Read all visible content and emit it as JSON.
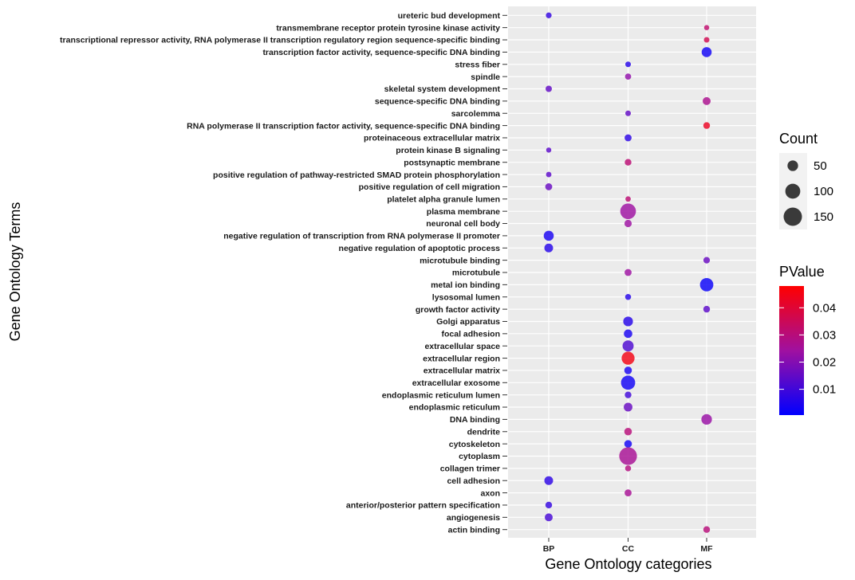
{
  "chart_data": {
    "type": "scatter",
    "xlabel": "Gene Ontology categories",
    "ylabel": "Gene Ontology Terms",
    "categories": [
      "BP",
      "CC",
      "MF"
    ],
    "terms": [
      "ureteric bud development",
      "transmembrane receptor protein tyrosine kinase activity",
      "transcriptional repressor activity, RNA polymerase II transcription regulatory region sequence-specific binding",
      "transcription factor activity, sequence-specific DNA binding",
      "stress fiber",
      "spindle",
      "skeletal system development",
      "sequence-specific DNA binding",
      "sarcolemma",
      "RNA polymerase II transcription factor activity, sequence-specific DNA binding",
      "proteinaceous extracellular matrix",
      "protein kinase B signaling",
      "postsynaptic membrane",
      "positive regulation of pathway-restricted SMAD protein phosphorylation",
      "positive regulation of cell migration",
      "platelet alpha granule lumen",
      "plasma membrane",
      "neuronal cell body",
      "negative regulation of transcription from RNA polymerase II promoter",
      "negative regulation of apoptotic process",
      "microtubule binding",
      "microtubule",
      "metal ion binding",
      "lysosomal lumen",
      "growth factor activity",
      "Golgi apparatus",
      "focal adhesion",
      "extracellular space",
      "extracellular region",
      "extracellular matrix",
      "extracellular exosome",
      "endoplasmic reticulum lumen",
      "endoplasmic reticulum",
      "DNA binding",
      "dendrite",
      "cytoskeleton",
      "cytoplasm",
      "collagen trimer",
      "cell adhesion",
      "axon",
      "anterior/posterior pattern specification",
      "angiogenesis",
      "actin binding"
    ],
    "points": [
      {
        "term": "ureteric bud development",
        "category": "BP",
        "count": 15,
        "pvalue": 0.008
      },
      {
        "term": "transmembrane receptor protein tyrosine kinase activity",
        "category": "MF",
        "count": 12,
        "pvalue": 0.032
      },
      {
        "term": "transcriptional repressor activity, RNA polymerase II transcription regulatory region sequence-specific binding",
        "category": "MF",
        "count": 14,
        "pvalue": 0.036
      },
      {
        "term": "transcription factor activity, sequence-specific DNA binding",
        "category": "MF",
        "count": 45,
        "pvalue": 0.003
      },
      {
        "term": "stress fiber",
        "category": "CC",
        "count": 14,
        "pvalue": 0.006
      },
      {
        "term": "spindle",
        "category": "CC",
        "count": 17,
        "pvalue": 0.022
      },
      {
        "term": "skeletal system development",
        "category": "BP",
        "count": 18,
        "pvalue": 0.015
      },
      {
        "term": "sequence-specific DNA binding",
        "category": "MF",
        "count": 28,
        "pvalue": 0.027
      },
      {
        "term": "sarcolemma",
        "category": "CC",
        "count": 14,
        "pvalue": 0.015
      },
      {
        "term": "RNA polymerase II transcription factor activity, sequence-specific DNA binding",
        "category": "MF",
        "count": 20,
        "pvalue": 0.043
      },
      {
        "term": "proteinaceous extracellular matrix",
        "category": "CC",
        "count": 22,
        "pvalue": 0.007
      },
      {
        "term": "protein kinase B signaling",
        "category": "BP",
        "count": 12,
        "pvalue": 0.014
      },
      {
        "term": "postsynaptic membrane",
        "category": "CC",
        "count": 20,
        "pvalue": 0.031
      },
      {
        "term": "positive regulation of pathway-restricted SMAD protein phosphorylation",
        "category": "BP",
        "count": 13,
        "pvalue": 0.014
      },
      {
        "term": "positive regulation of cell migration",
        "category": "BP",
        "count": 22,
        "pvalue": 0.016
      },
      {
        "term": "platelet alpha granule lumen",
        "category": "CC",
        "count": 13,
        "pvalue": 0.031
      },
      {
        "term": "plasma membrane",
        "category": "CC",
        "count": 110,
        "pvalue": 0.024
      },
      {
        "term": "neuronal cell body",
        "category": "CC",
        "count": 24,
        "pvalue": 0.024
      },
      {
        "term": "negative regulation of transcription from RNA polymerase II promoter",
        "category": "BP",
        "count": 45,
        "pvalue": 0.004
      },
      {
        "term": "negative regulation of apoptotic process",
        "category": "BP",
        "count": 34,
        "pvalue": 0.006
      },
      {
        "term": "microtubule binding",
        "category": "MF",
        "count": 19,
        "pvalue": 0.016
      },
      {
        "term": "microtubule",
        "category": "CC",
        "count": 22,
        "pvalue": 0.024
      },
      {
        "term": "metal ion binding",
        "category": "MF",
        "count": 80,
        "pvalue": 0.002
      },
      {
        "term": "lysosomal lumen",
        "category": "CC",
        "count": 16,
        "pvalue": 0.006
      },
      {
        "term": "growth factor activity",
        "category": "MF",
        "count": 20,
        "pvalue": 0.014
      },
      {
        "term": "Golgi apparatus",
        "category": "CC",
        "count": 42,
        "pvalue": 0.006
      },
      {
        "term": "focal adhesion",
        "category": "CC",
        "count": 32,
        "pvalue": 0.004
      },
      {
        "term": "extracellular space",
        "category": "CC",
        "count": 55,
        "pvalue": 0.012
      },
      {
        "term": "extracellular region",
        "category": "CC",
        "count": 75,
        "pvalue": 0.045
      },
      {
        "term": "extracellular matrix",
        "category": "CC",
        "count": 26,
        "pvalue": 0.004
      },
      {
        "term": "extracellular exosome",
        "category": "CC",
        "count": 90,
        "pvalue": 0.003
      },
      {
        "term": "endoplasmic reticulum lumen",
        "category": "CC",
        "count": 20,
        "pvalue": 0.01
      },
      {
        "term": "endoplasmic reticulum",
        "category": "CC",
        "count": 34,
        "pvalue": 0.016
      },
      {
        "term": "DNA binding",
        "category": "MF",
        "count": 50,
        "pvalue": 0.023
      },
      {
        "term": "dendrite",
        "category": "CC",
        "count": 26,
        "pvalue": 0.03
      },
      {
        "term": "cytoskeleton",
        "category": "CC",
        "count": 26,
        "pvalue": 0.003
      },
      {
        "term": "cytoplasm",
        "category": "CC",
        "count": 140,
        "pvalue": 0.026
      },
      {
        "term": "collagen trimer",
        "category": "CC",
        "count": 16,
        "pvalue": 0.029
      },
      {
        "term": "cell adhesion",
        "category": "BP",
        "count": 34,
        "pvalue": 0.007
      },
      {
        "term": "axon",
        "category": "CC",
        "count": 22,
        "pvalue": 0.026
      },
      {
        "term": "anterior/posterior pattern specification",
        "category": "BP",
        "count": 20,
        "pvalue": 0.008
      },
      {
        "term": "angiogenesis",
        "category": "BP",
        "count": 28,
        "pvalue": 0.011
      },
      {
        "term": "actin binding",
        "category": "MF",
        "count": 20,
        "pvalue": 0.03
      }
    ],
    "size_legend": {
      "title": "Count",
      "values": [
        50,
        100,
        150
      ]
    },
    "color_legend": {
      "title": "PValue",
      "ticks": [
        0.01,
        0.02,
        0.03,
        0.04
      ],
      "range": [
        0.0005,
        0.048
      ],
      "low_color": "#0000ff",
      "high_color": "#ff0000"
    },
    "grid": true,
    "legend_position": "right"
  }
}
